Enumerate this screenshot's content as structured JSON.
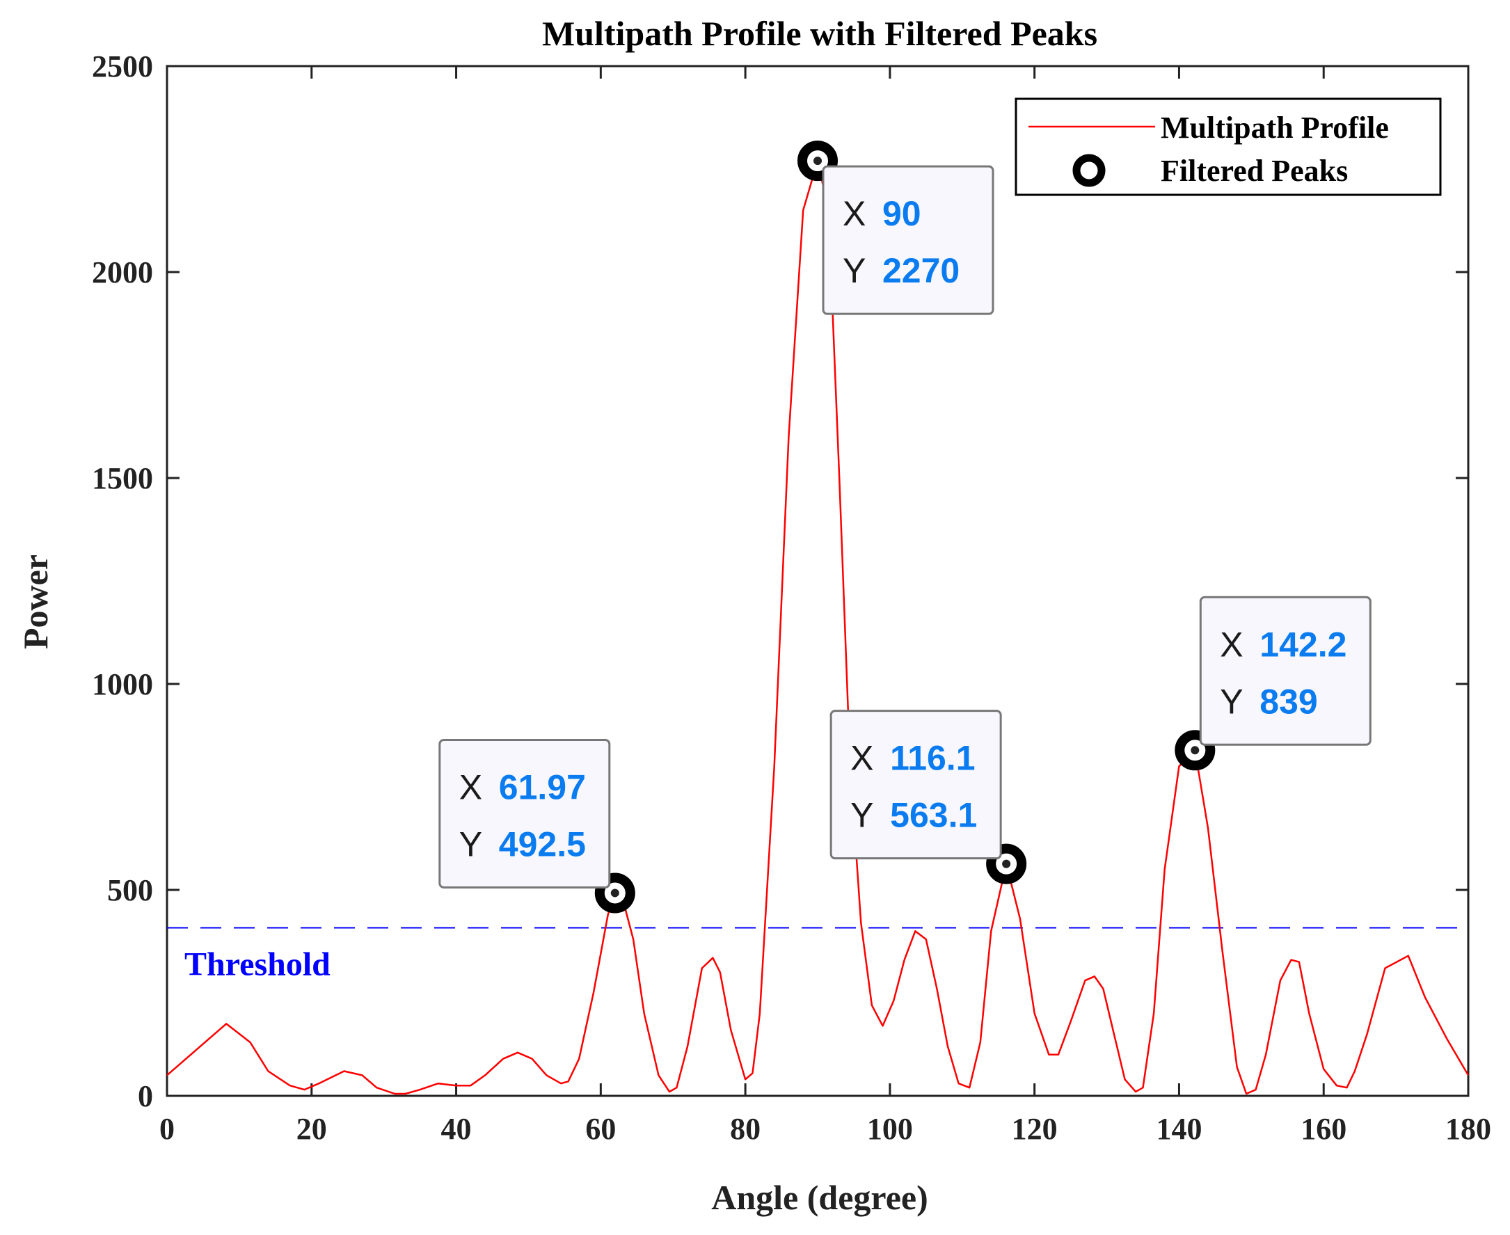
{
  "chart_data": {
    "type": "line",
    "title": "Multipath Profile with Filtered Peaks",
    "xlabel": "Angle (degree)",
    "ylabel": "Power",
    "xlim": [
      0,
      180
    ],
    "ylim": [
      0,
      2500
    ],
    "xticks": [
      0,
      20,
      40,
      60,
      80,
      100,
      120,
      140,
      160,
      180
    ],
    "yticks": [
      0,
      500,
      1000,
      1500,
      2000,
      2500
    ],
    "xtick_labels": [
      "0",
      "20",
      "40",
      "60",
      "80",
      "100",
      "120",
      "140",
      "160",
      "180"
    ],
    "ytick_labels": [
      "0",
      "500",
      "1000",
      "1500",
      "2000",
      "2500"
    ],
    "grid": false,
    "legend_position": "top-right",
    "legend": [
      "Multipath Profile",
      "Filtered Peaks"
    ],
    "threshold": {
      "value": 408,
      "label": "Threshold",
      "color": "#0000ff"
    },
    "series": [
      {
        "name": "Multipath Profile",
        "color": "#ff0000",
        "x": [
          0,
          8.2,
          11.5,
          14,
          17,
          19,
          21,
          24.5,
          27,
          29,
          31.5,
          33,
          35,
          37.5,
          40,
          42,
          44,
          46.5,
          48.5,
          50.5,
          52.5,
          54.5,
          55.5,
          57,
          59,
          61,
          61.97,
          63,
          64.5,
          66,
          68,
          69.5,
          70.5,
          72,
          74,
          75.5,
          76.5,
          78,
          80,
          81,
          82,
          84,
          86,
          88,
          90,
          91.5,
          93,
          94.5,
          96,
          97.5,
          99,
          100.5,
          102,
          103.5,
          105,
          106.5,
          108,
          109.5,
          111,
          112.5,
          114,
          116.1,
          118,
          120,
          122,
          123.3,
          125,
          127,
          128.3,
          129.5,
          131,
          132.5,
          134,
          135,
          136.5,
          138,
          140,
          142.2,
          144,
          146,
          148,
          149.3,
          150.6,
          152,
          154,
          155.5,
          156.6,
          158,
          160,
          161.8,
          163.2,
          164.3,
          166,
          168.5,
          171.7,
          174,
          177,
          180
        ],
        "y": [
          50,
          175,
          130,
          60,
          25,
          15,
          30,
          60,
          50,
          20,
          5,
          5,
          15,
          30,
          25,
          25,
          50,
          90,
          105,
          90,
          50,
          30,
          35,
          90,
          250,
          440,
          492.5,
          480,
          380,
          200,
          50,
          10,
          20,
          120,
          310,
          335,
          300,
          160,
          40,
          55,
          200,
          800,
          1600,
          2150,
          2270,
          2150,
          1500,
          800,
          420,
          220,
          170,
          230,
          330,
          400,
          380,
          260,
          120,
          30,
          20,
          130,
          400,
          563.1,
          430,
          200,
          100,
          100,
          180,
          280,
          290,
          260,
          150,
          40,
          10,
          20,
          200,
          550,
          800,
          839,
          650,
          350,
          70,
          5,
          15,
          100,
          280,
          330,
          325,
          200,
          65,
          25,
          20,
          60,
          150,
          310,
          340,
          240,
          140,
          50
        ]
      },
      {
        "name": "Filtered Peaks",
        "color": "#000000",
        "x": [
          61.97,
          90,
          116.1,
          142.2
        ],
        "y": [
          492.5,
          2270,
          563.1,
          839
        ]
      }
    ],
    "annotations": [
      {
        "x_label": "X",
        "y_label": "Y",
        "x_value": "61.97",
        "y_value": "492.5",
        "anchor": "up-left"
      },
      {
        "x_label": "X",
        "y_label": "Y",
        "x_value": "90",
        "y_value": "2270",
        "anchor": "down-right"
      },
      {
        "x_label": "X",
        "y_label": "Y",
        "x_value": "116.1",
        "y_value": "563.1",
        "anchor": "up-left"
      },
      {
        "x_label": "X",
        "y_label": "Y",
        "x_value": "142.2",
        "y_value": "839",
        "anchor": "up-right"
      }
    ],
    "datatip_value_color": "#0a7cf0",
    "axis_color": "#222222"
  }
}
